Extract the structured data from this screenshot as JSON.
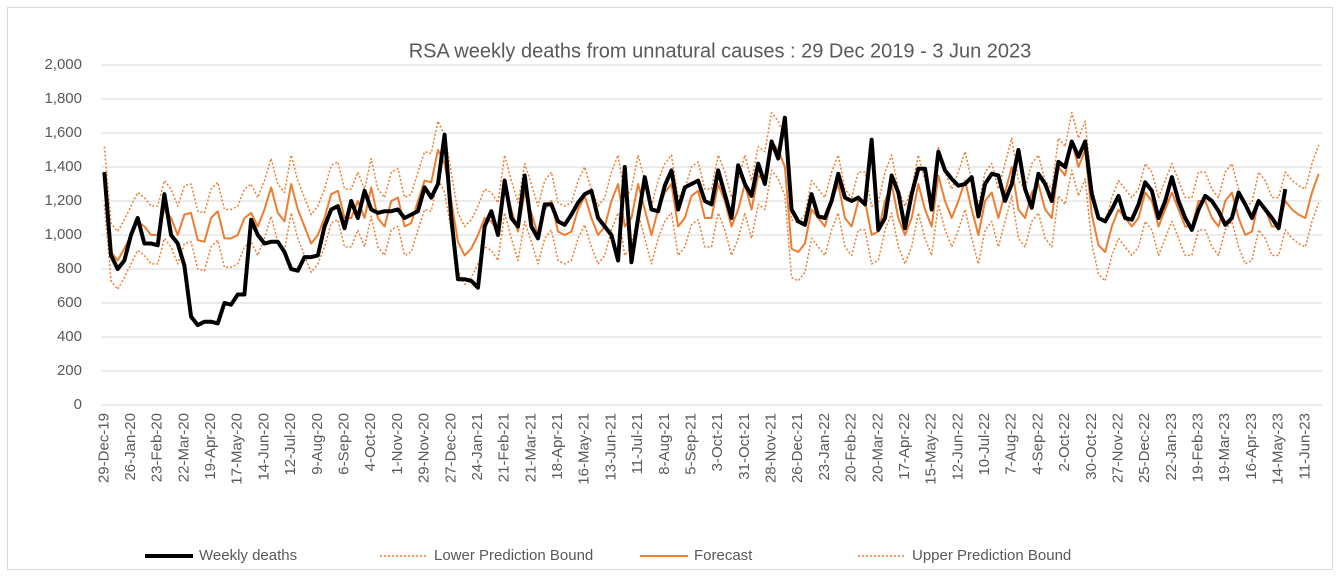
{
  "chart_data": {
    "type": "line",
    "title": "RSA weekly deaths from unnatural causes : 29 Dec 2019 - 3 Jun 2023",
    "categories": [
      "29-Dec-19",
      null,
      null,
      null,
      "26-Jan-20",
      null,
      null,
      null,
      "23-Feb-20",
      null,
      null,
      null,
      "22-Mar-20",
      null,
      null,
      null,
      "19-Apr-20",
      null,
      null,
      null,
      "17-May-20",
      null,
      null,
      null,
      "14-Jun-20",
      null,
      null,
      null,
      "12-Jul-20",
      null,
      null,
      null,
      "9-Aug-20",
      null,
      null,
      null,
      "6-Sep-20",
      null,
      null,
      null,
      "4-Oct-20",
      null,
      null,
      null,
      "1-Nov-20",
      null,
      null,
      null,
      "29-Nov-20",
      null,
      null,
      null,
      "27-Dec-20",
      null,
      null,
      null,
      "24-Jan-21",
      null,
      null,
      null,
      "21-Feb-21",
      null,
      null,
      null,
      "21-Mar-21",
      null,
      null,
      null,
      "18-Apr-21",
      null,
      null,
      null,
      "16-May-21",
      null,
      null,
      null,
      "13-Jun-21",
      null,
      null,
      null,
      "11-Jul-21",
      null,
      null,
      null,
      "8-Aug-21",
      null,
      null,
      null,
      "5-Sep-21",
      null,
      null,
      null,
      "3-Oct-21",
      null,
      null,
      null,
      "31-Oct-21",
      null,
      null,
      null,
      "28-Nov-21",
      null,
      null,
      null,
      "26-Dec-21",
      null,
      null,
      null,
      "23-Jan-22",
      null,
      null,
      null,
      "20-Feb-22",
      null,
      null,
      null,
      "20-Mar-22",
      null,
      null,
      null,
      "17-Apr-22",
      null,
      null,
      null,
      "15-May-22",
      null,
      null,
      null,
      "12-Jun-22",
      null,
      null,
      null,
      "10-Jul-22",
      null,
      null,
      null,
      "7-Aug-22",
      null,
      null,
      null,
      "4-Sep-22",
      null,
      null,
      null,
      "2-Oct-22",
      null,
      null,
      null,
      "30-Oct-22",
      null,
      null,
      null,
      "27-Nov-22",
      null,
      null,
      null,
      "25-Dec-22",
      null,
      null,
      null,
      "22-Jan-23",
      null,
      null,
      null,
      "19-Feb-23",
      null,
      null,
      null,
      "19-Mar-23",
      null,
      null,
      null,
      "16-Apr-23",
      null,
      null,
      null,
      "14-May-23",
      null,
      null,
      null,
      "11-Jun-23",
      null,
      null
    ],
    "series": [
      {
        "name": "Weekly deaths",
        "color": "#000000",
        "width": 4,
        "dash": "solid",
        "values": [
          1370,
          880,
          800,
          850,
          1000,
          1100,
          950,
          950,
          940,
          1240,
          1000,
          950,
          820,
          520,
          470,
          490,
          490,
          480,
          600,
          590,
          650,
          650,
          1090,
          1000,
          950,
          960,
          960,
          900,
          800,
          790,
          870,
          870,
          880,
          1050,
          1150,
          1170,
          1040,
          1200,
          1100,
          1260,
          1150,
          1130,
          1140,
          1140,
          1150,
          1100,
          1120,
          1140,
          1280,
          1220,
          1300,
          1590,
          1100,
          740,
          740,
          730,
          690,
          1050,
          1140,
          1000,
          1320,
          1100,
          1050,
          1350,
          1050,
          980,
          1180,
          1180,
          1080,
          1060,
          1120,
          1190,
          1240,
          1260,
          1100,
          1050,
          1000,
          850,
          1400,
          840,
          1100,
          1340,
          1150,
          1140,
          1290,
          1380,
          1150,
          1280,
          1300,
          1320,
          1200,
          1180,
          1380,
          1240,
          1100,
          1410,
          1300,
          1230,
          1420,
          1300,
          1550,
          1450,
          1690,
          1150,
          1080,
          1060,
          1240,
          1110,
          1100,
          1200,
          1360,
          1220,
          1200,
          1220,
          1180,
          1560,
          1030,
          1100,
          1350,
          1250,
          1040,
          1240,
          1390,
          1390,
          1150,
          1490,
          1380,
          1330,
          1290,
          1300,
          1340,
          1110,
          1300,
          1360,
          1350,
          1200,
          1300,
          1500,
          1270,
          1160,
          1360,
          1300,
          1200,
          1430,
          1400,
          1550,
          1460,
          1550,
          1240,
          1100,
          1080,
          1150,
          1230,
          1100,
          1090,
          1180,
          1310,
          1260,
          1100,
          1200,
          1340,
          1200,
          1100,
          1030,
          1150,
          1230,
          1200,
          1140,
          1060,
          1100,
          1250,
          1180,
          1100,
          1200,
          1150,
          1100,
          1040,
          1270,
          null,
          null,
          null,
          null,
          null
        ]
      },
      {
        "name": "Lower Prediction Bound",
        "color": "#ed7d31",
        "width": 1.5,
        "dash": "dotted",
        "values": [
          1180,
          730,
          680,
          750,
          830,
          910,
          880,
          830,
          830,
          980,
          930,
          830,
          950,
          960,
          800,
          790,
          930,
          970,
          810,
          810,
          830,
          930,
          960,
          880,
          980,
          1110,
          960,
          910,
          1130,
          980,
          880,
          780,
          830,
          930,
          1070,
          1090,
          930,
          930,
          1030,
          930,
          1110,
          930,
          880,
          1030,
          1050,
          880,
          900,
          1030,
          1150,
          1140,
          1330,
          1250,
          1030,
          790,
          710,
          750,
          830,
          930,
          910,
          850,
          1130,
          980,
          850,
          1080,
          960,
          830,
          980,
          1030,
          850,
          830,
          850,
          980,
          1060,
          930,
          830,
          880,
          1030,
          1130,
          880,
          930,
          1130,
          980,
          830,
          980,
          1080,
          1130,
          880,
          930,
          1060,
          1090,
          930,
          930,
          1130,
          1030,
          880,
          980,
          1130,
          980,
          1180,
          1150,
          1380,
          1330,
          1230,
          750,
          730,
          780,
          980,
          930,
          880,
          1030,
          1130,
          930,
          880,
          1030,
          1030,
          830,
          850,
          1030,
          1130,
          930,
          830,
          930,
          1130,
          980,
          880,
          1180,
          1030,
          930,
          1030,
          1150,
          980,
          830,
          1030,
          1080,
          930,
          1080,
          1230,
          980,
          930,
          1080,
          1130,
          980,
          930,
          1230,
          1180,
          1380,
          1230,
          1330,
          950,
          770,
          730,
          880,
          980,
          930,
          880,
          930,
          1080,
          1030,
          880,
          980,
          1080,
          980,
          880,
          880,
          1030,
          1030,
          930,
          880,
          1030,
          1080,
          930,
          830,
          850,
          1030,
          980,
          880,
          880,
          1030,
          980,
          950,
          930,
          1080,
          1190
        ]
      },
      {
        "name": "Forecast",
        "color": "#ed7d31",
        "width": 2,
        "dash": "solid",
        "values": [
          1350,
          900,
          850,
          920,
          1000,
          1080,
          1050,
          1000,
          1000,
          1150,
          1100,
          1000,
          1120,
          1130,
          970,
          960,
          1100,
          1140,
          980,
          980,
          1000,
          1100,
          1130,
          1050,
          1150,
          1280,
          1130,
          1080,
          1300,
          1150,
          1050,
          950,
          1000,
          1100,
          1240,
          1260,
          1100,
          1100,
          1200,
          1100,
          1280,
          1100,
          1050,
          1200,
          1220,
          1050,
          1070,
          1200,
          1320,
          1310,
          1500,
          1420,
          1200,
          960,
          880,
          920,
          1000,
          1100,
          1080,
          1020,
          1300,
          1150,
          1020,
          1250,
          1130,
          1000,
          1150,
          1200,
          1020,
          1000,
          1020,
          1150,
          1230,
          1100,
          1000,
          1050,
          1200,
          1300,
          1050,
          1100,
          1300,
          1150,
          1000,
          1150,
          1250,
          1300,
          1050,
          1100,
          1230,
          1260,
          1100,
          1100,
          1300,
          1200,
          1050,
          1150,
          1300,
          1150,
          1350,
          1320,
          1550,
          1500,
          1400,
          920,
          900,
          950,
          1150,
          1100,
          1050,
          1200,
          1300,
          1100,
          1050,
          1200,
          1200,
          1000,
          1020,
          1200,
          1300,
          1100,
          1000,
          1100,
          1300,
          1150,
          1050,
          1350,
          1200,
          1100,
          1200,
          1320,
          1150,
          1000,
          1200,
          1250,
          1100,
          1250,
          1400,
          1150,
          1100,
          1250,
          1300,
          1150,
          1100,
          1400,
          1350,
          1550,
          1400,
          1500,
          1120,
          940,
          900,
          1050,
          1150,
          1100,
          1050,
          1100,
          1250,
          1200,
          1050,
          1150,
          1250,
          1150,
          1050,
          1050,
          1200,
          1200,
          1100,
          1050,
          1200,
          1250,
          1100,
          1000,
          1020,
          1200,
          1150,
          1050,
          1050,
          1200,
          1150,
          1120,
          1100,
          1250,
          1360
        ]
      },
      {
        "name": "Upper Prediction Bound",
        "color": "#ed7d31",
        "width": 1.5,
        "dash": "dotted",
        "values": [
          1520,
          1070,
          1020,
          1090,
          1170,
          1250,
          1220,
          1170,
          1170,
          1320,
          1270,
          1170,
          1290,
          1300,
          1140,
          1130,
          1270,
          1310,
          1150,
          1150,
          1170,
          1270,
          1300,
          1220,
          1320,
          1450,
          1300,
          1250,
          1470,
          1320,
          1220,
          1120,
          1170,
          1270,
          1410,
          1430,
          1270,
          1270,
          1370,
          1270,
          1450,
          1270,
          1220,
          1370,
          1390,
          1220,
          1240,
          1370,
          1490,
          1480,
          1670,
          1590,
          1370,
          1130,
          1050,
          1090,
          1170,
          1270,
          1250,
          1190,
          1470,
          1320,
          1190,
          1420,
          1300,
          1170,
          1320,
          1370,
          1190,
          1170,
          1190,
          1320,
          1400,
          1270,
          1170,
          1220,
          1370,
          1470,
          1220,
          1270,
          1470,
          1320,
          1170,
          1320,
          1420,
          1470,
          1220,
          1270,
          1400,
          1430,
          1270,
          1270,
          1470,
          1370,
          1220,
          1320,
          1470,
          1320,
          1520,
          1490,
          1720,
          1670,
          1570,
          1090,
          1070,
          1120,
          1320,
          1270,
          1220,
          1370,
          1470,
          1270,
          1220,
          1370,
          1370,
          1170,
          1190,
          1370,
          1470,
          1270,
          1170,
          1270,
          1470,
          1320,
          1220,
          1520,
          1370,
          1270,
          1370,
          1490,
          1320,
          1170,
          1370,
          1420,
          1270,
          1420,
          1570,
          1320,
          1270,
          1420,
          1470,
          1320,
          1270,
          1570,
          1520,
          1720,
          1570,
          1670,
          1290,
          1110,
          1070,
          1220,
          1320,
          1270,
          1220,
          1270,
          1420,
          1370,
          1220,
          1320,
          1420,
          1320,
          1220,
          1220,
          1370,
          1370,
          1270,
          1220,
          1370,
          1420,
          1270,
          1170,
          1190,
          1370,
          1320,
          1220,
          1220,
          1370,
          1320,
          1290,
          1270,
          1420,
          1530
        ]
      }
    ],
    "ylim": [
      0,
      2000
    ],
    "yticks": [
      0,
      200,
      400,
      600,
      800,
      {
        "value": 1000,
        "label": "1,000"
      },
      {
        "value": 1200,
        "label": "1,200"
      },
      {
        "value": 1400,
        "label": "1,400"
      },
      {
        "value": 1600,
        "label": "1,600"
      },
      {
        "value": 1800,
        "label": "1,800"
      },
      {
        "value": 2000,
        "label": "2,000"
      }
    ],
    "grid": true,
    "legend": "bottom"
  }
}
